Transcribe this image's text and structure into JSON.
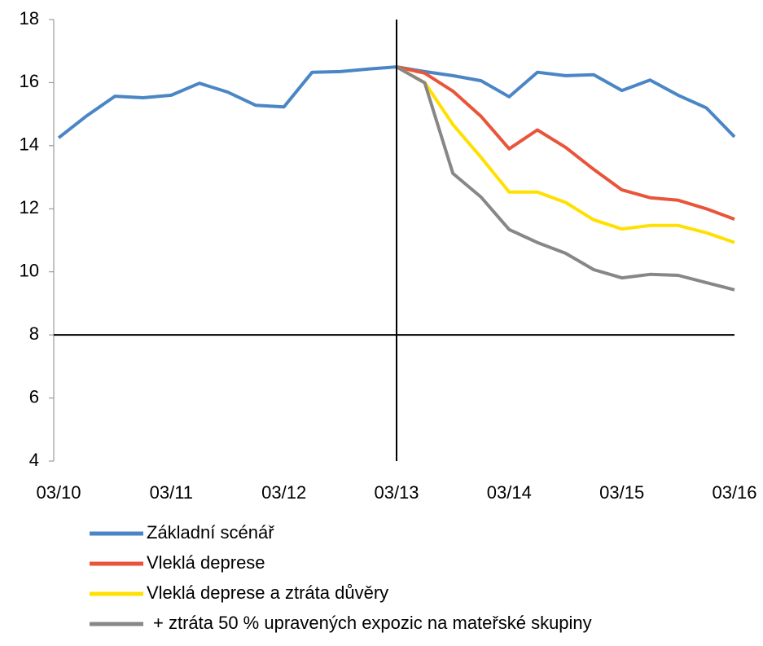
{
  "chart_data": {
    "type": "line",
    "categories": [
      "03/10",
      null,
      null,
      null,
      "03/11",
      null,
      null,
      null,
      "03/12",
      null,
      null,
      null,
      "03/13",
      null,
      null,
      null,
      "03/14",
      null,
      null,
      null,
      "03/15",
      null,
      null,
      null,
      "03/16"
    ],
    "series": [
      {
        "name": "Základní scénář",
        "color": "#4a86c5",
        "values": [
          14.25,
          14.95,
          15.57,
          15.52,
          15.6,
          15.98,
          15.7,
          15.28,
          15.23,
          16.33,
          16.35,
          16.43,
          16.5,
          16.35,
          16.22,
          16.06,
          15.55,
          16.33,
          16.22,
          16.25,
          15.75,
          16.08,
          15.6,
          15.2,
          14.28
        ]
      },
      {
        "name": "Vleklá deprese",
        "color": "#e8553a",
        "values": [
          null,
          null,
          null,
          null,
          null,
          null,
          null,
          null,
          null,
          null,
          null,
          null,
          16.5,
          16.3,
          15.73,
          14.93,
          13.9,
          14.5,
          13.95,
          13.25,
          12.6,
          12.35,
          12.27,
          12.0,
          11.67
        ]
      },
      {
        "name": "Vleklá deprese a ztráta důvěry",
        "color": "#ffe000",
        "values": [
          null,
          null,
          null,
          null,
          null,
          null,
          null,
          null,
          null,
          null,
          null,
          null,
          16.5,
          16.0,
          14.67,
          13.63,
          12.53,
          12.53,
          12.2,
          11.65,
          11.36,
          11.47,
          11.47,
          11.24,
          10.93
        ]
      },
      {
        "name": "+ ztráta 50 % upravených expozic na mateřské skupiny",
        "color": "#878787",
        "values": [
          null,
          null,
          null,
          null,
          null,
          null,
          null,
          null,
          null,
          null,
          null,
          null,
          16.5,
          15.99,
          13.12,
          12.37,
          11.34,
          10.93,
          10.59,
          10.07,
          9.81,
          9.92,
          9.89,
          9.66,
          9.43
        ]
      }
    ],
    "ylim": [
      4,
      18
    ],
    "yticks": [
      4,
      6,
      8,
      10,
      12,
      14,
      16,
      18
    ],
    "hline": 8,
    "vline_index": 12,
    "grid": false
  }
}
